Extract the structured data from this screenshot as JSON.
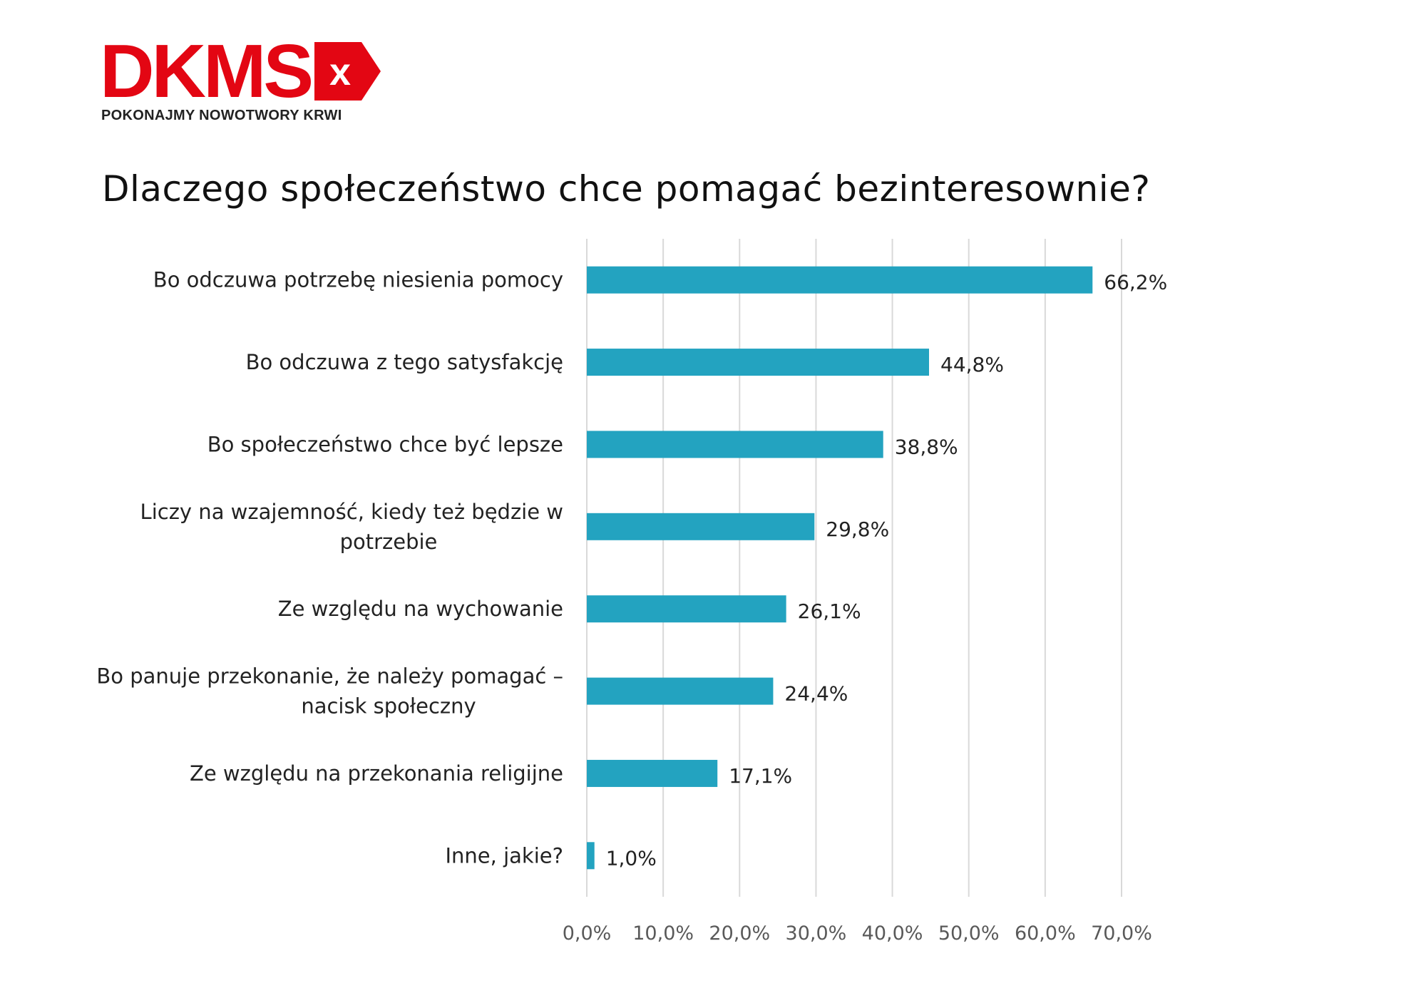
{
  "logo": {
    "wordmark": "DKMS",
    "badge_letter": "x",
    "tagline": "POKONAJMY NOWOTWORY KRWI",
    "brand_color": "#e30613"
  },
  "chart_data": {
    "type": "bar",
    "orientation": "horizontal",
    "title": "Dlaczego społeczeństwo chce pomagać bezinteresownie?",
    "categories": [
      [
        "Bo odczuwa potrzebę niesienia pomocy"
      ],
      [
        "Bo odczuwa z tego satysfakcję"
      ],
      [
        "Bo społeczeństwo chce być lepsze"
      ],
      [
        "Liczy na wzajemność, kiedy też będzie w",
        "potrzebie"
      ],
      [
        "Ze względu na wychowanie"
      ],
      [
        "Bo panuje przekonanie, że należy pomagać –",
        "nacisk społeczny"
      ],
      [
        "Ze względu na przekonania religijne"
      ],
      [
        "Inne, jakie?"
      ]
    ],
    "values": [
      66.2,
      44.8,
      38.8,
      29.8,
      26.1,
      24.4,
      17.1,
      1.0
    ],
    "value_labels": [
      "66,2%",
      "44,8%",
      "38,8%",
      "29,8%",
      "26,1%",
      "24,4%",
      "17,1%",
      "1,0%"
    ],
    "xlim": [
      0,
      70
    ],
    "x_ticks": [
      "0,0%",
      "10,0%",
      "20,0%",
      "30,0%",
      "40,0%",
      "50,0%",
      "60,0%",
      "70,0%"
    ],
    "grid": true,
    "bar_color": "#23a3c0"
  }
}
